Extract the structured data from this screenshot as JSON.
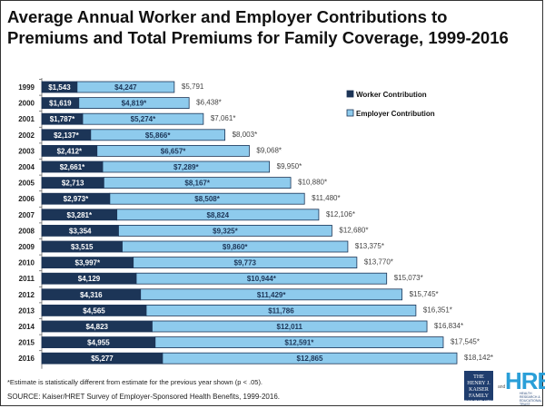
{
  "chart_data": {
    "type": "bar",
    "orientation": "horizontal",
    "stacked": true,
    "title": "Average Annual Worker and Employer Contributions to Premiums and Total Premiums for Family Coverage, 1999-2016",
    "xlabel": "",
    "ylabel": "",
    "xlim": [
      0,
      20000
    ],
    "grid": false,
    "legend_position": "right",
    "categories": [
      "1999",
      "2000",
      "2001",
      "2002",
      "2003",
      "2004",
      "2005",
      "2006",
      "2007",
      "2008",
      "2009",
      "2010",
      "2011",
      "2012",
      "2013",
      "2014",
      "2015",
      "2016"
    ],
    "series": [
      {
        "name": "Worker Contribution",
        "color": "#1c3557",
        "values": [
          1543,
          1619,
          1787,
          2137,
          2412,
          2661,
          2713,
          2973,
          3281,
          3354,
          3515,
          3997,
          4129,
          4316,
          4565,
          4823,
          4955,
          5277
        ],
        "labels": [
          "$1,543",
          "$1,619",
          "$1,787*",
          "$2,137*",
          "$2,412*",
          "$2,661*",
          "$2,713",
          "$2,973*",
          "$3,281*",
          "$3,354",
          "$3,515",
          "$3,997*",
          "$4,129",
          "$4,316",
          "$4,565",
          "$4,823",
          "$4,955",
          "$5,277"
        ]
      },
      {
        "name": "Employer Contribution",
        "color": "#8ecbed",
        "values": [
          4247,
          4819,
          5274,
          5866,
          6657,
          7289,
          8167,
          8508,
          8824,
          9325,
          9860,
          9773,
          10944,
          11429,
          11786,
          12011,
          12591,
          12865
        ],
        "labels": [
          "$4,247",
          "$4,819*",
          "$5,274*",
          "$5,866*",
          "$6,657*",
          "$7,289*",
          "$8,167*",
          "$8,508*",
          "$8,824",
          "$9,325*",
          "$9,860*",
          "$9,773",
          "$10,944*",
          "$11,429*",
          "$11,786",
          "$12,011",
          "$12,591*",
          "$12,865"
        ]
      }
    ],
    "totals": [
      5791,
      6438,
      7061,
      8003,
      9068,
      9950,
      10880,
      11480,
      12106,
      12680,
      13375,
      13770,
      15073,
      15745,
      16351,
      16834,
      17545,
      18142
    ],
    "total_labels": [
      "$5,791",
      "$6,438*",
      "$7,061*",
      "$8,003*",
      "$9,068*",
      "$9,950*",
      "$10,880*",
      "$11,480*",
      "$12,106*",
      "$12,680*",
      "$13,375*",
      "$13,770*",
      "$15,073*",
      "$15,745*",
      "$16,351*",
      "$16,834*",
      "$17,545*",
      "$18,142*"
    ]
  },
  "notes": {
    "footnote": "*Estimate is statistically different from estimate for the previous year shown (p < .05).",
    "source": "SOURCE:  Kaiser/HRET Survey of Employer-Sponsored Health Benefits, 1999-2016."
  },
  "logos": {
    "kff": "THE HENRY J. KAISER FAMILY FOUNDATION",
    "and": "and",
    "hret": "HRET",
    "hret_sub": "HEALTH RESEARCH & EDUCATIONAL TRUST"
  }
}
